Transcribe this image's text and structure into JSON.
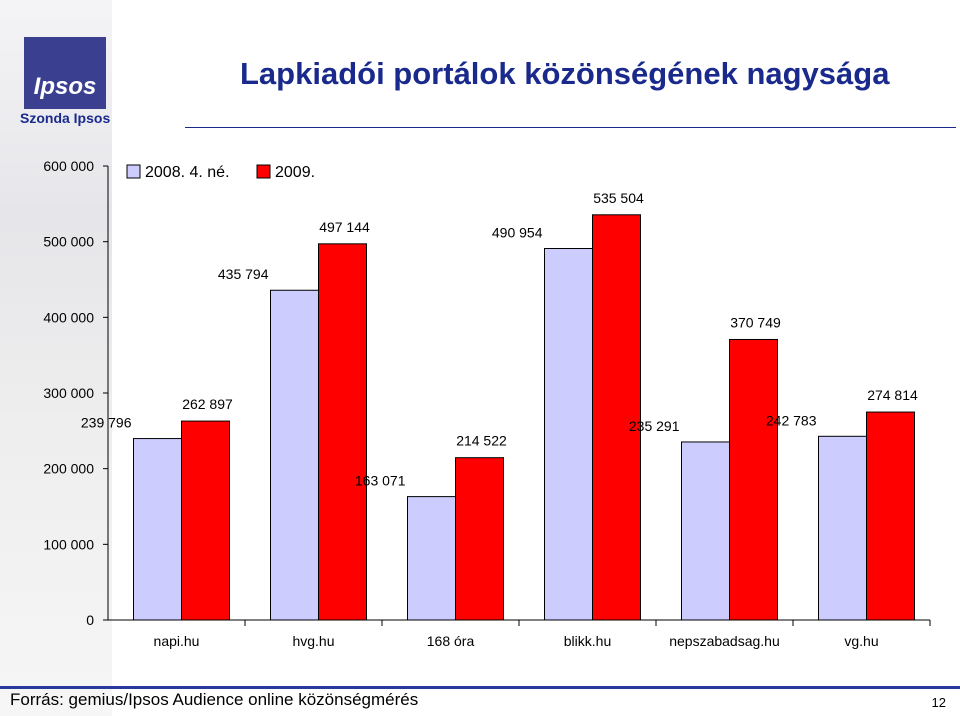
{
  "header": {
    "title": "Lapkiadói portálok közönségének nagysága",
    "brand": "Szonda Ipsos",
    "logo_text": "Ipsos"
  },
  "footer": {
    "source": "Forrás: gemius/Ipsos Audience online közönségmérés",
    "page": "12"
  },
  "colors": {
    "series1": "#ccccff",
    "series2": "#ff0000",
    "title": "#1a2a8c"
  },
  "chart_data": {
    "type": "bar",
    "categories": [
      "napi.hu",
      "hvg.hu",
      "168 óra",
      "blikk.hu",
      "nepszabadsag.hu",
      "vg.hu"
    ],
    "series": [
      {
        "name": "2008. 4. né.",
        "values": [
          239796,
          435794,
          163071,
          490954,
          235291,
          242783
        ],
        "labels": [
          "239 796",
          "435 794",
          "163 071",
          "490 954",
          "235 291",
          "242 783"
        ]
      },
      {
        "name": "2009.",
        "values": [
          262897,
          497144,
          214522,
          535504,
          370749,
          274814
        ],
        "labels": [
          "262 897",
          "497 144",
          "214 522",
          "535 504",
          "370 749",
          "274 814"
        ]
      }
    ],
    "ylim": [
      0,
      600000
    ],
    "yticks": [
      0,
      100000,
      200000,
      300000,
      400000,
      500000,
      600000
    ],
    "ytick_labels": [
      "0",
      "100 000",
      "200 000",
      "300 000",
      "400 000",
      "500 000",
      "600 000"
    ],
    "legend": "top-left",
    "grid": false
  }
}
